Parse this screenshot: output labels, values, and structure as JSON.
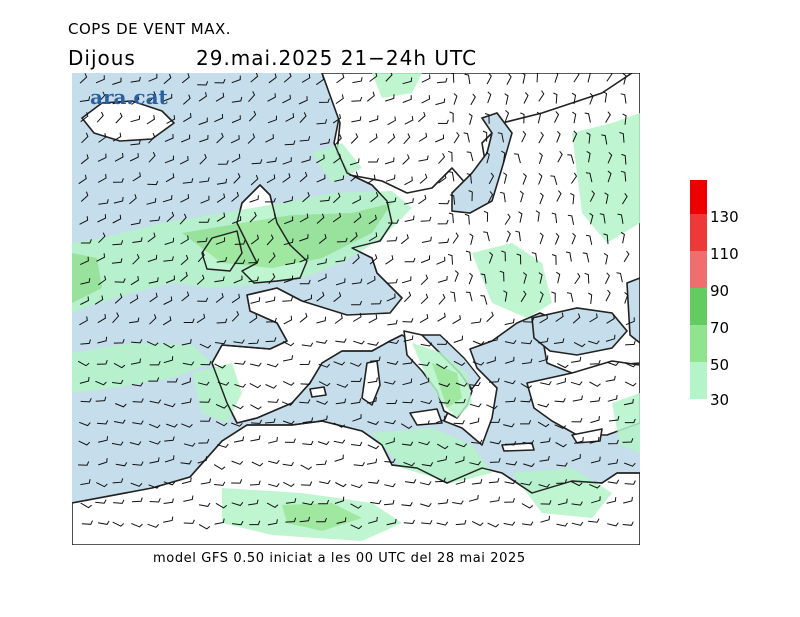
{
  "header": {
    "title": "COPS DE VENT MAX.",
    "day": "Dijous",
    "datetime": "29.mai.2025 21−24h UTC"
  },
  "logo": {
    "text": "ara.cat"
  },
  "footer": {
    "text": "model GFS 0.50 iniciat a les 00 UTC del 28 mai 2025"
  },
  "legend": {
    "bins": [
      {
        "color": "#ee0000",
        "label": ""
      },
      {
        "color": "#f03838",
        "label": "130"
      },
      {
        "color": "#f06e6e",
        "label": "110"
      },
      {
        "color": "#62cc62",
        "label": "90"
      },
      {
        "color": "#90e490",
        "label": "70"
      },
      {
        "color": "#b4f4c8",
        "label": "50"
      },
      {
        "color": "",
        "label": "30"
      }
    ]
  },
  "map": {
    "colors": {
      "sea": "#c6ddec",
      "land": "#ffffff",
      "coast": "#222222"
    },
    "icon": "wind-barb-field"
  }
}
